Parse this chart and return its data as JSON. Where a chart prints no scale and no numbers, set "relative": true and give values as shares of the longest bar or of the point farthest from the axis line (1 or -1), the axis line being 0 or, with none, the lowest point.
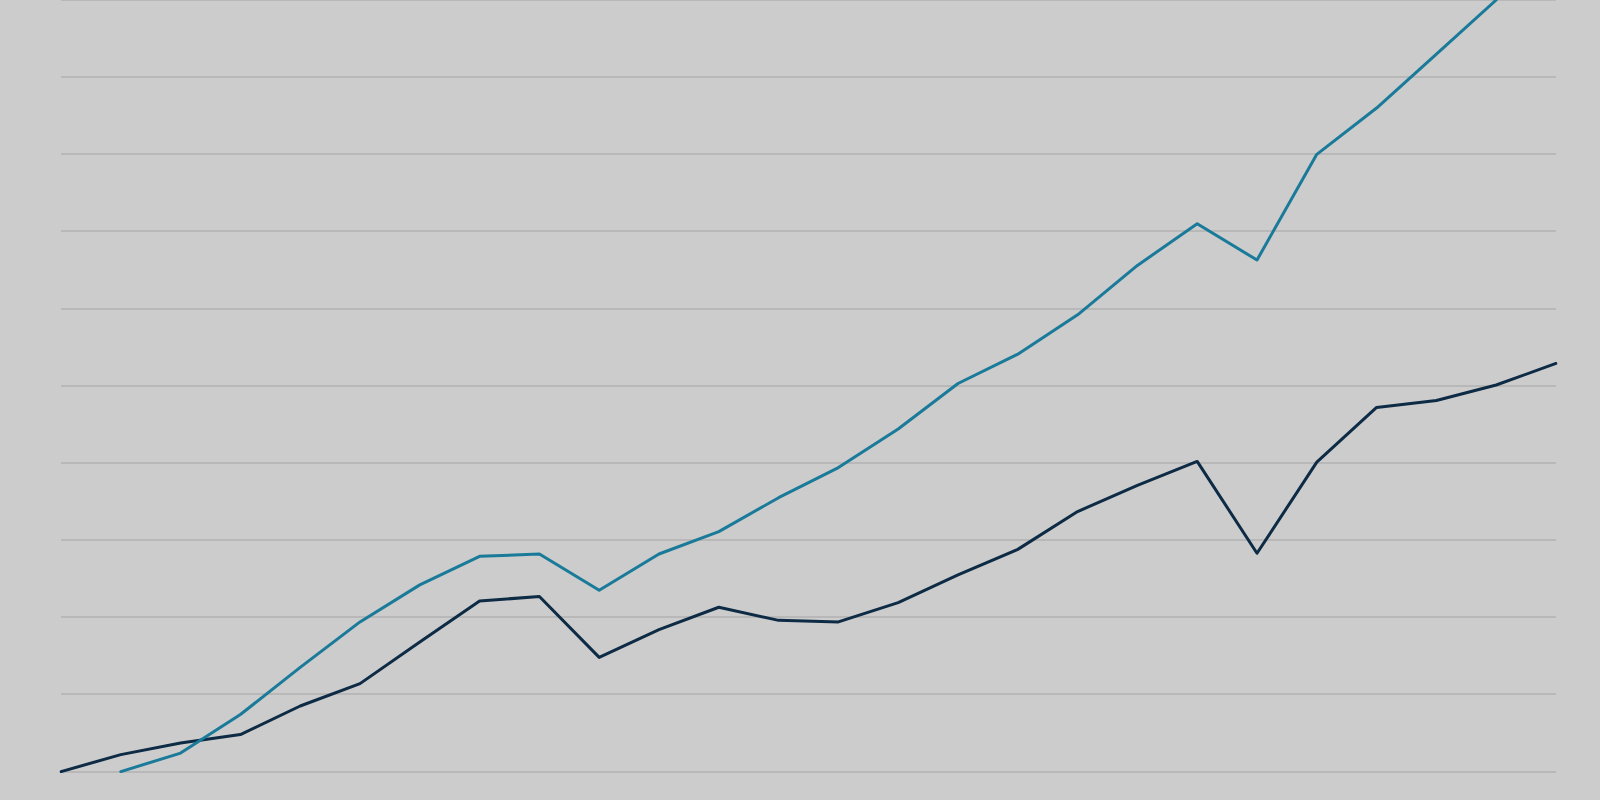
{
  "chart_data": {
    "type": "line",
    "relative": true,
    "grid": "y",
    "legend": false,
    "marker": "none",
    "line_style": "solid",
    "categories": [
      null,
      null,
      null,
      null,
      null,
      null,
      null,
      null,
      null,
      null,
      null,
      null,
      null,
      null,
      null,
      null,
      null,
      null,
      null,
      null,
      null,
      null,
      null,
      null,
      null,
      null
    ],
    "series": [
      {
        "color": "#1a7a9a",
        "values": [
          null,
          0,
          0.024,
          0.074,
          0.135,
          0.194,
          0.242,
          0.279,
          0.282,
          0.235,
          0.282,
          0.311,
          0.355,
          0.394,
          0.444,
          0.503,
          0.541,
          0.592,
          0.656,
          0.71,
          0.663,
          0.8,
          0.86,
          0.93,
          1,
          null
        ]
      },
      {
        "color": "#0d2b45",
        "values": [
          0,
          0.022,
          0.037,
          0.048,
          0.085,
          0.114,
          0.168,
          0.221,
          0.227,
          0.148,
          0.184,
          0.213,
          0.196,
          0.194,
          0.219,
          0.255,
          0.288,
          0.337,
          0.371,
          0.402,
          0.283,
          0.401,
          0.472,
          0.481,
          0.501,
          0.529
        ]
      }
    ]
  }
}
